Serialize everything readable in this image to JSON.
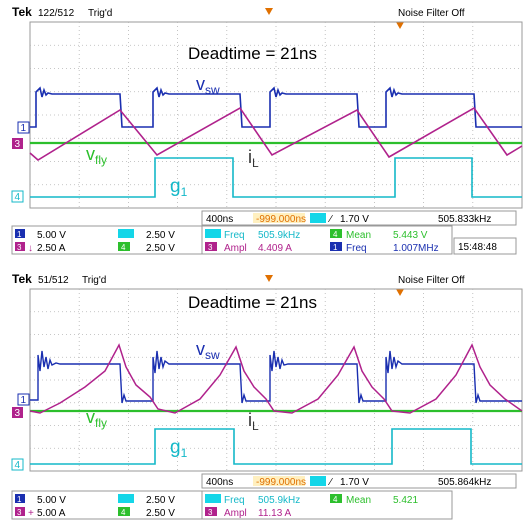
{
  "colors": {
    "ch1": "#1a2fb0",
    "ch3": "#b0228c",
    "ch4": "#14b8c8",
    "ch2": "#2cbf2c",
    "grid": "#9a9a9a",
    "highlight": "#e07000",
    "background": "#ffffff"
  },
  "scopes": [
    {
      "header": {
        "brand": "Tek",
        "record": "122/512",
        "trig": "Trig'd",
        "mode": "Noise Filter Off"
      },
      "title": "Deadtime = 21ns",
      "trace_labels": {
        "vsw": "v",
        "vsw_sub": "sw",
        "vfly": "v",
        "vfly_sub": "fly",
        "il": "i",
        "il_sub": "L",
        "g1": "g",
        "g1_sub": "1"
      },
      "channel_markers": {
        "ch1": "1",
        "ch3": "3",
        "ch4": "4"
      },
      "readout": {
        "row1": {
          "ch1_num": "1",
          "ch1_scale": "5.00 V",
          "ch2_scale": "2.50 V"
        },
        "row2": {
          "ch3_num": "3",
          "ch3_scale": "2.50 A",
          "ch4_num": "4",
          "ch4_scale": "2.50 V"
        },
        "timebase": "400ns",
        "trigger_pos": "-999.000ns",
        "trigger_level": "1.70 V",
        "trigger_freq": "505.833kHz",
        "meas": [
          {
            "label": "Freq",
            "value": "505.9kHz"
          },
          {
            "label": "Mean",
            "value": "5.443 V",
            "chan": "4"
          },
          {
            "label": "Ampl",
            "value": "4.409 A",
            "chan": "3"
          },
          {
            "label": "Freq",
            "value": "1.007MHz",
            "chan": "1"
          }
        ],
        "time": "15:48:48"
      },
      "chart_data": {
        "type": "line",
        "x_unit": "ns",
        "x_per_div": 400,
        "series": [
          {
            "name": "vsw",
            "channel": "1",
            "y_per_div": "5.00 V",
            "description": "square wave ~5 V high, period ~2 us, ringing at rising edges"
          },
          {
            "name": "iL",
            "channel": "3",
            "y_per_div": "2.50 A",
            "description": "triangular inductor current, amplitude 4.409 A"
          },
          {
            "name": "vfly",
            "channel": "2",
            "y_per_div": "2.50 V",
            "description": "flat ~DC trace"
          },
          {
            "name": "g1",
            "channel": "4",
            "y_per_div": "2.50 V",
            "description": "gate pulse, ~5 V high"
          }
        ]
      }
    },
    {
      "header": {
        "brand": "Tek",
        "record": "51/512",
        "trig": "Trig'd",
        "mode": "Noise Filter Off"
      },
      "title": "Deadtime = 21ns",
      "trace_labels": {
        "vsw": "v",
        "vsw_sub": "sw",
        "vfly": "v",
        "vfly_sub": "fly",
        "il": "i",
        "il_sub": "L",
        "g1": "g",
        "g1_sub": "1"
      },
      "channel_markers": {
        "ch1": "1",
        "ch3": "3",
        "ch4": "4"
      },
      "readout": {
        "row1": {
          "ch1_num": "1",
          "ch1_scale": "5.00 V",
          "ch2_scale": "2.50 V"
        },
        "row2": {
          "ch3_num": "3",
          "ch3_scale": "5.00 A",
          "ch4_num": "4",
          "ch4_scale": "2.50 V"
        },
        "timebase": "400ns",
        "trigger_pos": "-999.000ns",
        "trigger_level": "1.70 V",
        "trigger_freq": "505.864kHz",
        "meas": [
          {
            "label": "Freq",
            "value": "505.9kHz"
          },
          {
            "label": "Mean",
            "value": "5.421",
            "chan": "4"
          },
          {
            "label": "Ampl",
            "value": "11.13 A",
            "chan": "3"
          }
        ],
        "time": ""
      },
      "chart_data": {
        "type": "line",
        "x_unit": "ns",
        "x_per_div": 400,
        "series": [
          {
            "name": "vsw",
            "channel": "1",
            "y_per_div": "5.00 V",
            "description": "square wave with heavy ringing at edges"
          },
          {
            "name": "iL",
            "channel": "3",
            "y_per_div": "5.00 A",
            "description": "resonant inductor current, amplitude 11.13 A"
          },
          {
            "name": "vfly",
            "channel": "2",
            "y_per_div": "2.50 V",
            "description": "flat ~DC trace"
          },
          {
            "name": "g1",
            "channel": "4",
            "y_per_div": "2.50 V",
            "description": "gate pulse, ~5 V high"
          }
        ]
      }
    }
  ]
}
